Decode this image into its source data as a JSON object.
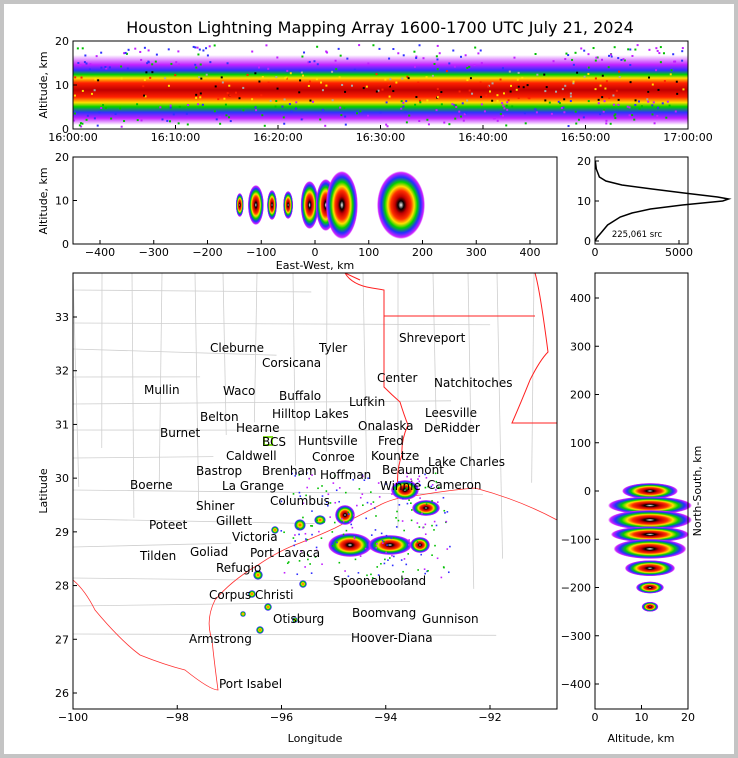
{
  "title": "Houston Lightning Mapping Array 1600-1700 UTC July 21, 2024",
  "colors": {
    "state_border": "#ff2020",
    "county_border": "#cccccc",
    "platform_label": "#2a2aff",
    "mullin_label": "#f08a5a",
    "bcs_label": "#a01818"
  },
  "chart_data": [
    {
      "type": "heatmap",
      "name": "time-height",
      "ylabel": "Altitude, km",
      "ylim": [
        0,
        20
      ],
      "yticks": [
        "0",
        "10",
        "20"
      ],
      "xticks": [
        "16:00:00",
        "16:10:00",
        "16:20:00",
        "16:30:00",
        "16:40:00",
        "16:50:00",
        "17:00:00"
      ]
    },
    {
      "type": "heatmap",
      "name": "east-west-height",
      "xlabel": "East-West, km",
      "ylabel": "Altitude, km",
      "xlim": [
        -450,
        450
      ],
      "ylim": [
        0,
        20
      ],
      "xticks": [
        "−400",
        "−300",
        "−200",
        "−100",
        "0",
        "100",
        "200",
        "300",
        "400"
      ],
      "yticks": [
        "0",
        "10",
        "20"
      ]
    },
    {
      "type": "line",
      "name": "altitude-histogram",
      "annotation": "225,061 src",
      "xticks": [
        "0",
        "5000"
      ],
      "yticks": [
        "0",
        "10",
        "20"
      ],
      "xlim": [
        0,
        8200
      ],
      "ylim": [
        0,
        21
      ],
      "altitude": [
        0,
        1,
        2,
        4,
        6,
        7,
        8,
        9,
        10,
        10.5,
        11,
        12,
        13,
        14,
        15,
        16,
        18,
        20
      ],
      "count": [
        0,
        150,
        350,
        750,
        1500,
        2200,
        3300,
        5200,
        7600,
        7950,
        7300,
        5300,
        3400,
        1600,
        650,
        260,
        80,
        20
      ]
    },
    {
      "type": "heatmap",
      "name": "plan-view-map",
      "xlabel": "Longitude",
      "ylabel": "Latitude",
      "xlim": [
        -100,
        -90.7
      ],
      "ylim": [
        25.7,
        33.8
      ],
      "xticks": [
        "−100",
        "−98",
        "−96",
        "−94",
        "−92"
      ],
      "yticks": [
        "26",
        "27",
        "28",
        "29",
        "30",
        "31",
        "32",
        "33"
      ]
    },
    {
      "type": "heatmap",
      "name": "north-south-height",
      "xlabel": "Altitude, km",
      "ylabel": "North-South, km",
      "xlim": [
        0,
        20
      ],
      "ylim": [
        -450,
        450
      ],
      "xticks": [
        "0",
        "10",
        "20"
      ],
      "yticks": [
        "400",
        "300",
        "200",
        "100",
        "0",
        "−100",
        "−200",
        "−300",
        "−400"
      ]
    }
  ],
  "cities": [
    "Cleburne",
    "Tyler",
    "Corsicana",
    "Shreveport",
    "Center",
    "Natchitoches",
    "Mullin",
    "Waco",
    "Buffalo",
    "Lufkin",
    "Leesville",
    "Belton",
    "Hilltop Lakes",
    "DeRidder",
    "Burnet",
    "Hearne",
    "Onalaska",
    "Huntsville",
    "BCS",
    "Caldwell",
    "Fred",
    "Kountze",
    "Conroe",
    "Lake Charles",
    "Bastrop",
    "Brenham",
    "Hoffman",
    "Beaumont",
    "La Grange",
    "Winnie",
    "Cameron",
    "Boerne",
    "Columbus",
    "Shiner",
    "Poteet",
    "Gillett",
    "Victoria",
    "Goliad",
    "Port Lavaca",
    "Tilden",
    "Refugio",
    "Corpus Christi",
    "Spoonebooland",
    "Otisburg",
    "Boomvang",
    "Gunnison",
    "Hoover-Diana",
    "Armstrong",
    "Port Isabel"
  ]
}
